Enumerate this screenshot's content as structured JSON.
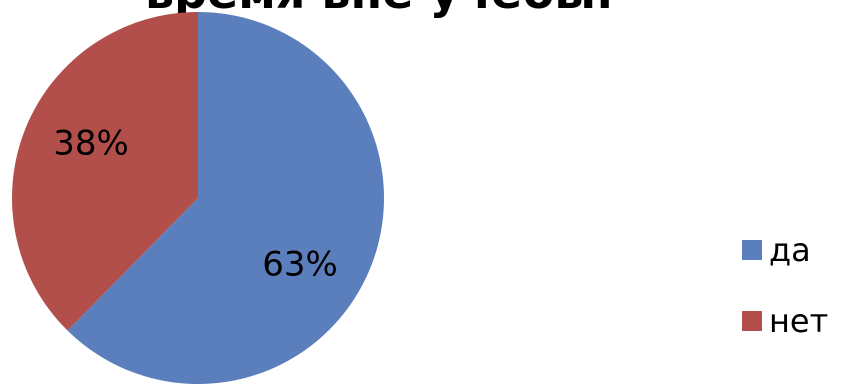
{
  "chart_data": {
    "type": "pie",
    "title": "время вне учебы.",
    "categories": [
      "да",
      "нет"
    ],
    "values": [
      63,
      38
    ],
    "labels": [
      "63%",
      "38%"
    ],
    "colors": [
      "#5b7fbd",
      "#b34f4b"
    ],
    "legend_position": "right"
  }
}
